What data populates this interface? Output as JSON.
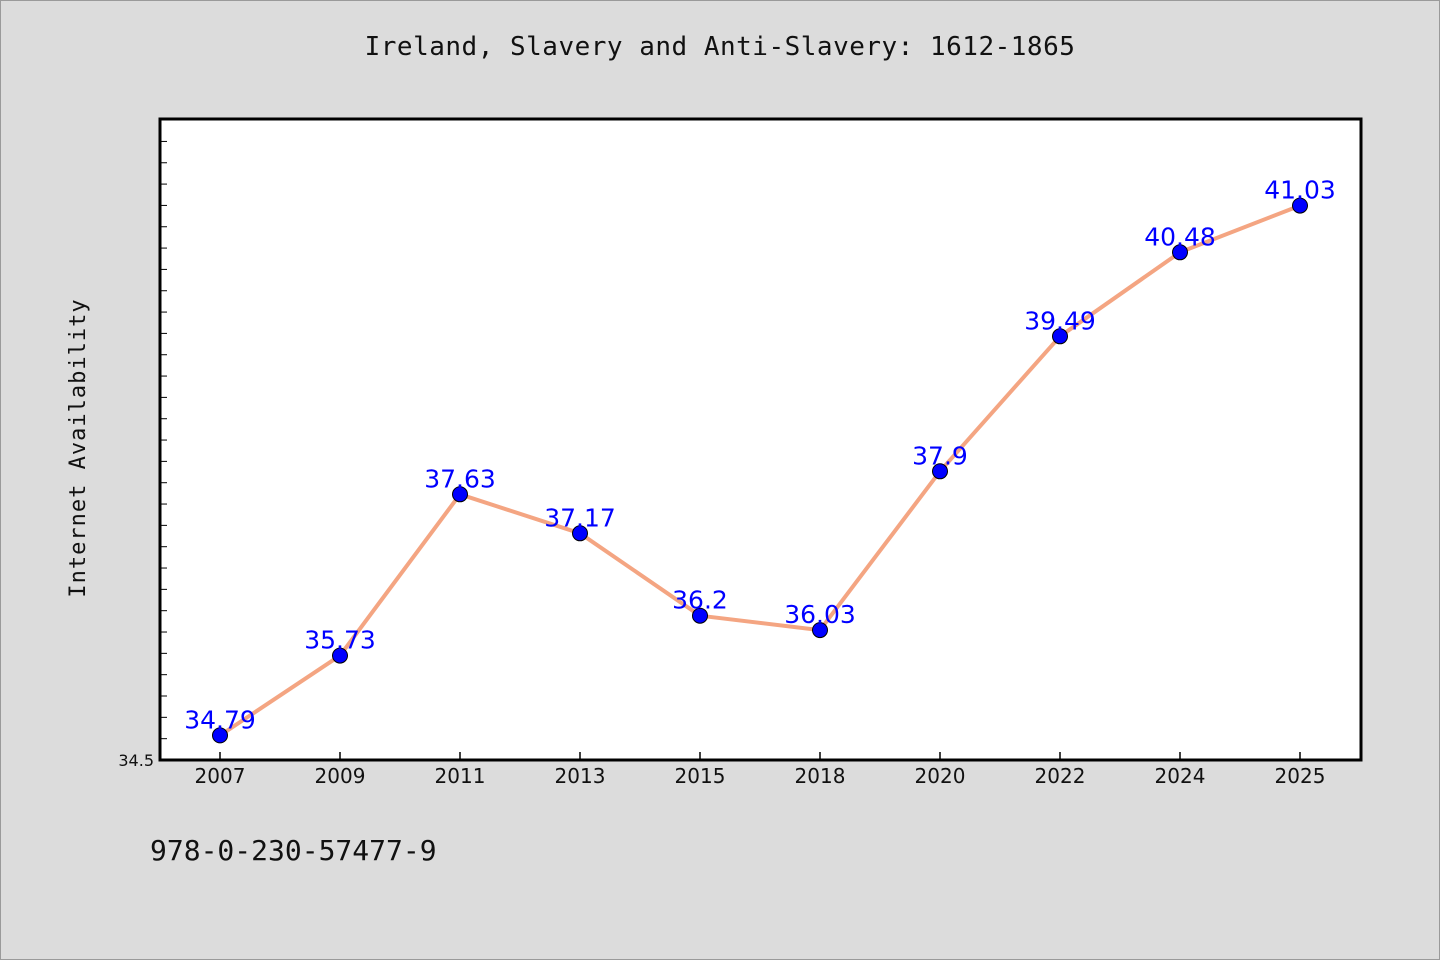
{
  "title": "Ireland, Slavery and Anti-Slavery: 1612-1865",
  "isbn": "978-0-230-57477-9",
  "colors": {
    "background": "#dcdcdc",
    "plot_background": "#ffffff",
    "line": "#f4a582",
    "marker": "#0000ff",
    "label": "#0000ff"
  },
  "chart_data": {
    "type": "line",
    "title": "Ireland, Slavery and Anti-Slavery: 1612-1865",
    "xlabel": "",
    "ylabel": "Internet Availability",
    "categories": [
      "2007",
      "2009",
      "2011",
      "2013",
      "2015",
      "2018",
      "2020",
      "2022",
      "2024",
      "2025"
    ],
    "values": [
      34.79,
      35.73,
      37.63,
      37.17,
      36.2,
      36.03,
      37.9,
      39.49,
      40.48,
      41.03
    ],
    "data_labels": [
      "34.79",
      "35.73",
      "37.63",
      "37.17",
      "36.2",
      "36.03",
      "37.9",
      "39.49",
      "40.48",
      "41.03"
    ],
    "ylim": [
      34.5,
      42.05
    ],
    "y_tick_labels": [
      "34.5"
    ],
    "grid": false,
    "legend": "none"
  }
}
